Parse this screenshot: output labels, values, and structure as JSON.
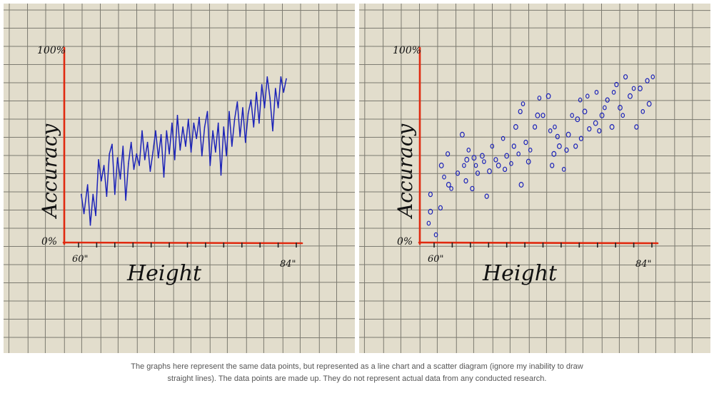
{
  "colors": {
    "paper": "#e2ddcc",
    "grid": "#5a5a52",
    "axis": "#e02a10",
    "ink": "#1c23b8",
    "text": "#111111",
    "caption": "#555555"
  },
  "chart_data": [
    {
      "type": "line",
      "xlabel": "Height",
      "ylabel": "Accuracy",
      "x_tick_labels": [
        "60\"",
        "84\""
      ],
      "y_tick_labels": [
        "0%",
        "100%"
      ],
      "xlim": [
        60,
        84
      ],
      "ylim": [
        0,
        100
      ],
      "series": [
        {
          "name": "accuracy",
          "points": [
            [
              60.3,
              25
            ],
            [
              60.6,
              15
            ],
            [
              61.0,
              30
            ],
            [
              61.3,
              9
            ],
            [
              61.6,
              25
            ],
            [
              61.9,
              14
            ],
            [
              62.2,
              43
            ],
            [
              62.5,
              32
            ],
            [
              62.8,
              40
            ],
            [
              63.1,
              24
            ],
            [
              63.4,
              46
            ],
            [
              63.7,
              51
            ],
            [
              64.0,
              25
            ],
            [
              64.3,
              44
            ],
            [
              64.6,
              33
            ],
            [
              64.9,
              50
            ],
            [
              65.2,
              22
            ],
            [
              65.5,
              41
            ],
            [
              65.8,
              52
            ],
            [
              66.1,
              38
            ],
            [
              66.4,
              46
            ],
            [
              66.7,
              40
            ],
            [
              67.0,
              58
            ],
            [
              67.3,
              43
            ],
            [
              67.6,
              52
            ],
            [
              67.9,
              37
            ],
            [
              68.2,
              47
            ],
            [
              68.5,
              58
            ],
            [
              68.8,
              44
            ],
            [
              69.1,
              56
            ],
            [
              69.4,
              34
            ],
            [
              69.7,
              58
            ],
            [
              70.0,
              46
            ],
            [
              70.3,
              62
            ],
            [
              70.6,
              43
            ],
            [
              70.9,
              66
            ],
            [
              71.2,
              48
            ],
            [
              71.5,
              60
            ],
            [
              71.8,
              50
            ],
            [
              72.1,
              64
            ],
            [
              72.4,
              47
            ],
            [
              72.7,
              62
            ],
            [
              73.0,
              54
            ],
            [
              73.3,
              65
            ],
            [
              73.6,
              45
            ],
            [
              73.9,
              60
            ],
            [
              74.2,
              68
            ],
            [
              74.5,
              40
            ],
            [
              74.8,
              58
            ],
            [
              75.1,
              47
            ],
            [
              75.4,
              62
            ],
            [
              75.7,
              35
            ],
            [
              76.0,
              60
            ],
            [
              76.3,
              45
            ],
            [
              76.6,
              68
            ],
            [
              76.9,
              50
            ],
            [
              77.2,
              64
            ],
            [
              77.5,
              73
            ],
            [
              77.8,
              55
            ],
            [
              78.1,
              70
            ],
            [
              78.4,
              52
            ],
            [
              78.7,
              67
            ],
            [
              79.0,
              74
            ],
            [
              79.3,
              60
            ],
            [
              79.6,
              78
            ],
            [
              79.9,
              62
            ],
            [
              80.2,
              82
            ],
            [
              80.5,
              70
            ],
            [
              80.8,
              86
            ],
            [
              81.1,
              75
            ],
            [
              81.4,
              58
            ],
            [
              81.7,
              80
            ],
            [
              82.0,
              70
            ],
            [
              82.3,
              86
            ],
            [
              82.6,
              78
            ],
            [
              82.9,
              85
            ]
          ]
        }
      ]
    },
    {
      "type": "scatter",
      "xlabel": "Height",
      "ylabel": "Accuracy",
      "x_tick_labels": [
        "60\"",
        "84\""
      ],
      "y_tick_labels": [
        "0%",
        "100%"
      ],
      "xlim": [
        60,
        84
      ],
      "ylim": [
        0,
        100
      ],
      "series": [
        {
          "name": "accuracy",
          "points": [
            [
              59.4,
              10
            ],
            [
              59.6,
              25
            ],
            [
              59.6,
              16
            ],
            [
              60.2,
              4
            ],
            [
              60.7,
              18
            ],
            [
              60.8,
              40
            ],
            [
              61.1,
              34
            ],
            [
              61.5,
              46
            ],
            [
              61.6,
              30
            ],
            [
              61.9,
              28
            ],
            [
              62.6,
              36
            ],
            [
              63.1,
              56
            ],
            [
              63.3,
              40
            ],
            [
              63.5,
              32
            ],
            [
              63.6,
              43
            ],
            [
              63.8,
              48
            ],
            [
              64.2,
              28
            ],
            [
              64.4,
              44
            ],
            [
              64.6,
              40
            ],
            [
              64.8,
              36
            ],
            [
              65.3,
              45
            ],
            [
              65.5,
              42
            ],
            [
              65.8,
              24
            ],
            [
              66.1,
              37
            ],
            [
              66.4,
              50
            ],
            [
              66.8,
              43
            ],
            [
              67.1,
              40
            ],
            [
              67.6,
              54
            ],
            [
              67.8,
              38
            ],
            [
              68.0,
              45
            ],
            [
              68.5,
              41
            ],
            [
              68.8,
              50
            ],
            [
              69.0,
              60
            ],
            [
              69.3,
              46
            ],
            [
              69.5,
              68
            ],
            [
              69.6,
              30
            ],
            [
              69.8,
              72
            ],
            [
              70.1,
              52
            ],
            [
              70.4,
              42
            ],
            [
              70.6,
              48
            ],
            [
              71.1,
              60
            ],
            [
              71.4,
              66
            ],
            [
              71.6,
              75
            ],
            [
              72.0,
              66
            ],
            [
              72.6,
              76
            ],
            [
              72.8,
              58
            ],
            [
              73.0,
              40
            ],
            [
              73.2,
              46
            ],
            [
              73.3,
              60
            ],
            [
              73.6,
              55
            ],
            [
              73.8,
              50
            ],
            [
              74.3,
              38
            ],
            [
              74.6,
              48
            ],
            [
              74.8,
              56
            ],
            [
              75.2,
              66
            ],
            [
              75.6,
              50
            ],
            [
              75.8,
              64
            ],
            [
              76.1,
              74
            ],
            [
              76.2,
              54
            ],
            [
              76.6,
              68
            ],
            [
              76.9,
              76
            ],
            [
              77.1,
              59
            ],
            [
              77.8,
              62
            ],
            [
              77.9,
              78
            ],
            [
              78.2,
              58
            ],
            [
              78.5,
              66
            ],
            [
              78.8,
              70
            ],
            [
              79.1,
              74
            ],
            [
              79.6,
              60
            ],
            [
              79.8,
              78
            ],
            [
              80.1,
              82
            ],
            [
              80.5,
              70
            ],
            [
              80.8,
              66
            ],
            [
              81.1,
              86
            ],
            [
              81.6,
              76
            ],
            [
              82.0,
              80
            ],
            [
              82.3,
              60
            ],
            [
              82.7,
              80
            ],
            [
              83.0,
              68
            ],
            [
              83.5,
              84
            ],
            [
              83.7,
              72
            ],
            [
              84.1,
              86
            ]
          ]
        }
      ]
    }
  ],
  "caption": "The graphs here represent the same data points, but represented as a line chart and a scatter diagram (ignore my inability to draw straight lines). The data points are made up. They do not represent actual data from any conducted research."
}
